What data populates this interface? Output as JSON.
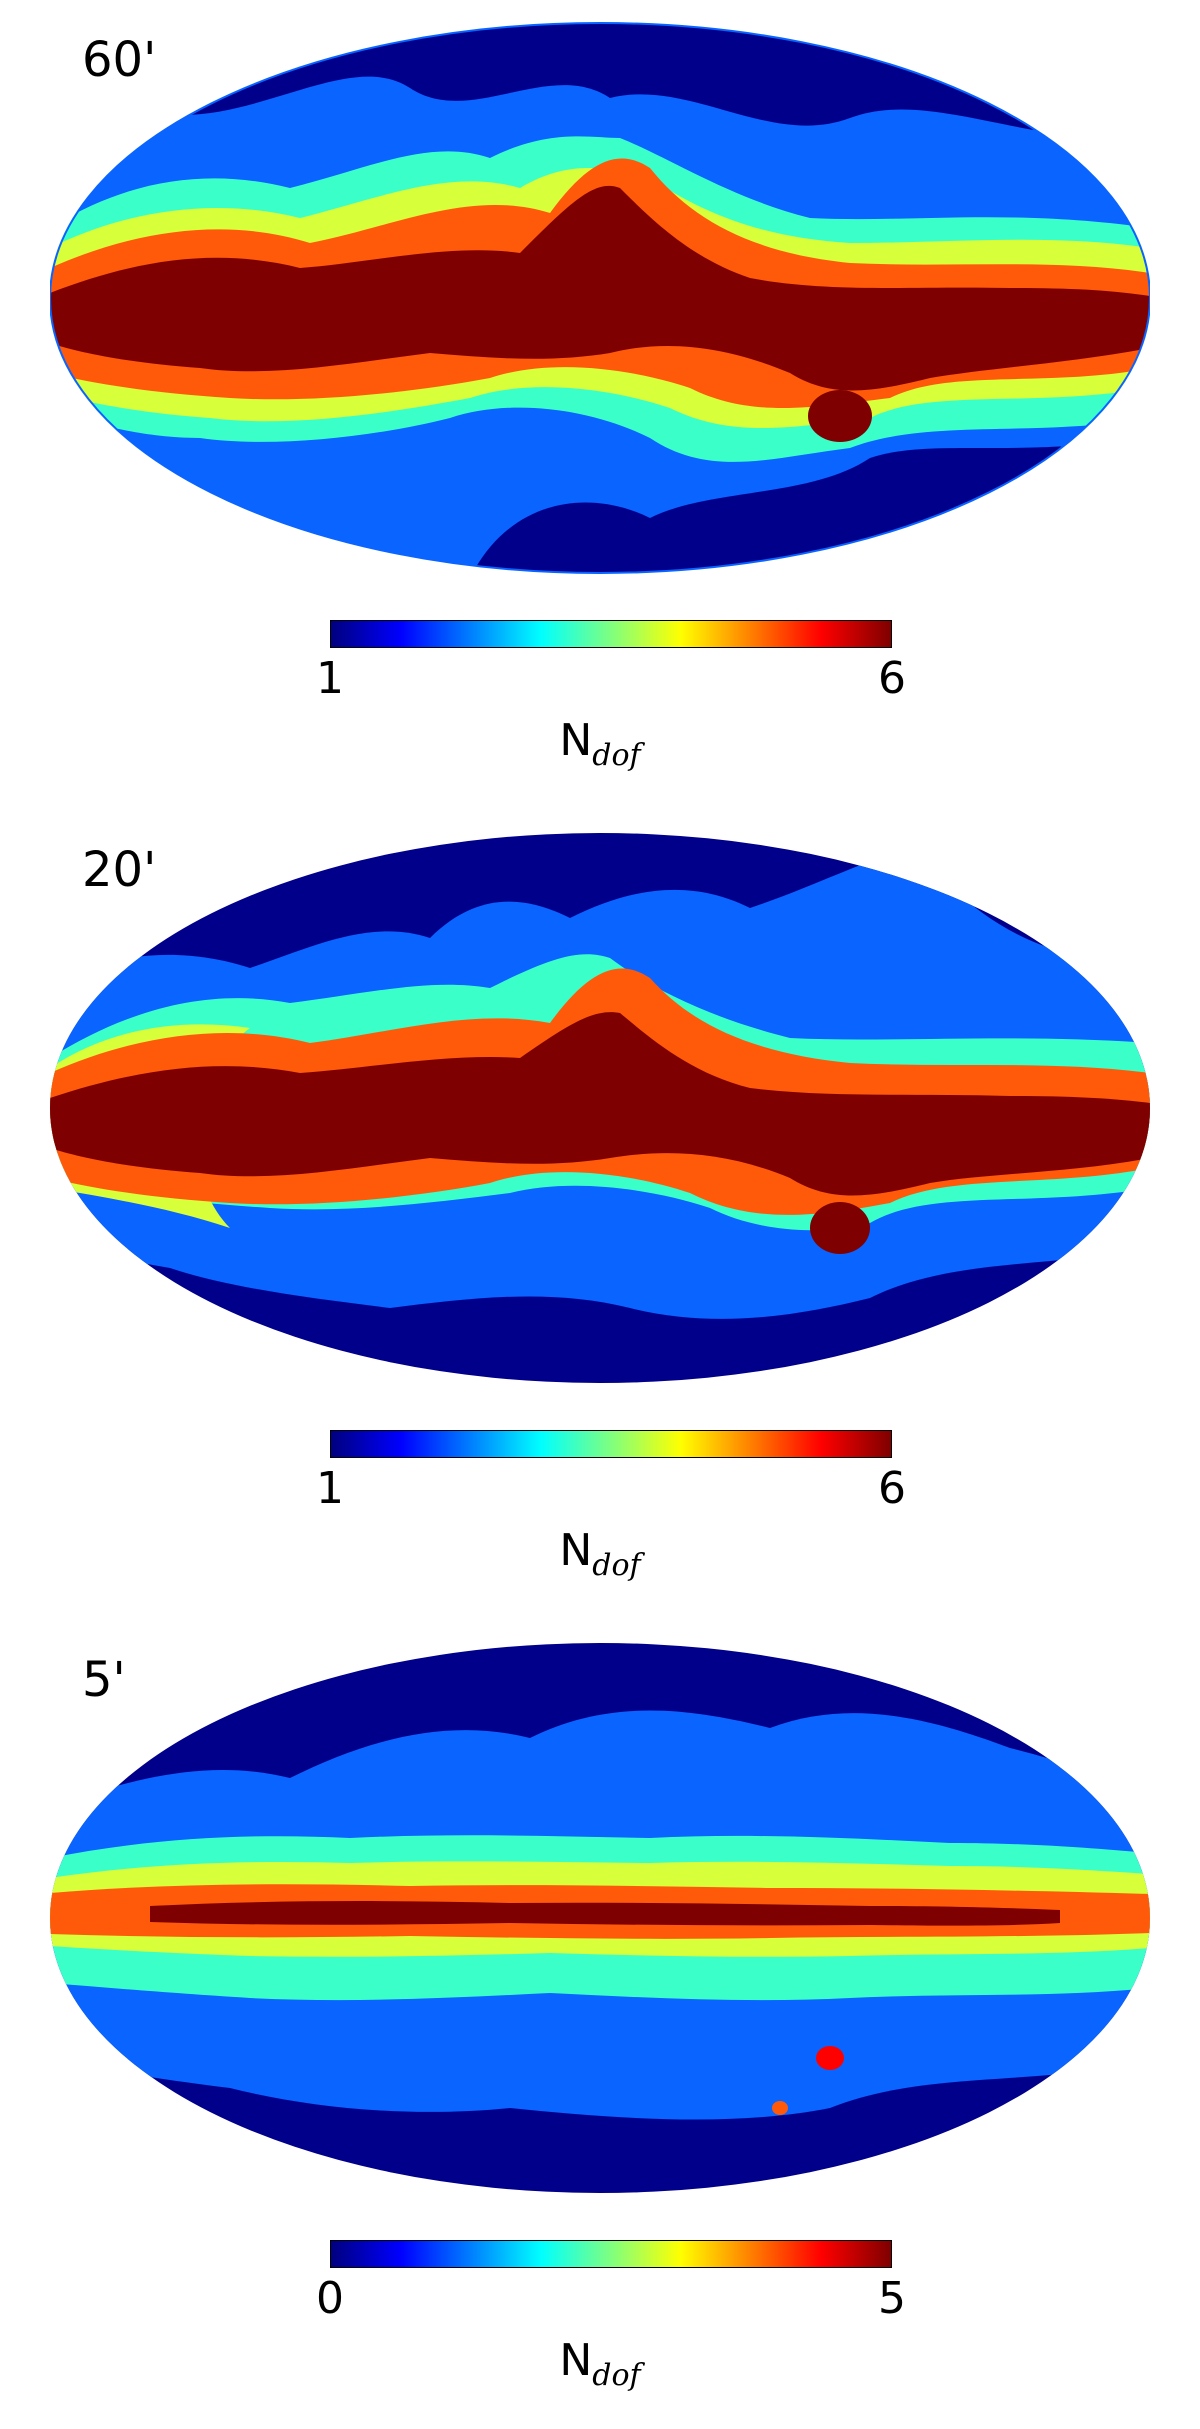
{
  "panels": [
    {
      "resolution": "60'",
      "cbar_min": "1",
      "cbar_max": "6",
      "cbar_label_main": "N",
      "cbar_label_sub": "dof"
    },
    {
      "resolution": "20'",
      "cbar_min": "1",
      "cbar_max": "6",
      "cbar_label_main": "N",
      "cbar_label_sub": "dof"
    },
    {
      "resolution": "5'",
      "cbar_min": "0",
      "cbar_max": "5",
      "cbar_label_main": "N",
      "cbar_label_sub": "dof"
    }
  ],
  "colormap": [
    "#00007f",
    "#0000ff",
    "#007fff",
    "#00ffff",
    "#7fff7f",
    "#ffff00",
    "#ff7f00",
    "#ff0000",
    "#7f0000"
  ],
  "map_colors": {
    "dark_blue": "#00008b",
    "blue": "#0a64ff",
    "cyan": "#3affc8",
    "yellow_green": "#d7ff3a",
    "orange": "#ff5a0a",
    "dark_red": "#7f0000"
  }
}
